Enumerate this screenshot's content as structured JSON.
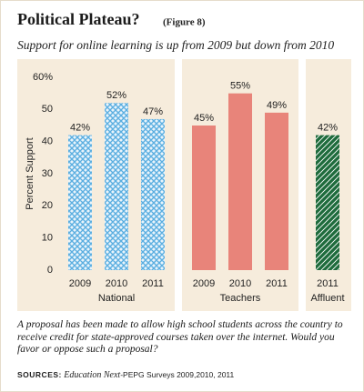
{
  "title": "Political Plateau?",
  "figure": "(Figure 8)",
  "chart_data": {
    "type": "bar",
    "subtitle": "Support for online learning is up from 2009 but down from 2010",
    "y_label": "Percent Support",
    "ylim": [
      0,
      60
    ],
    "yticks": [
      {
        "value": 60,
        "label": "60%"
      },
      50,
      40,
      30,
      20,
      10,
      0
    ],
    "background": "#f6ecdc",
    "series": [
      {
        "name": "National",
        "color": "#5aaee0",
        "pattern": "crosshatch",
        "categories": [
          "2009",
          "2010",
          "2011"
        ],
        "values": [
          42,
          52,
          47
        ],
        "value_labels": [
          "42%",
          "52%",
          "47%"
        ]
      },
      {
        "name": "Teachers",
        "color": "#e8847a",
        "pattern": "solid",
        "categories": [
          "2009",
          "2010",
          "2011"
        ],
        "values": [
          45,
          55,
          49
        ],
        "value_labels": [
          "45%",
          "55%",
          "49%"
        ]
      },
      {
        "name": "Affluent",
        "color": "#1e6b3c",
        "pattern": "diagonal",
        "categories": [
          "2011"
        ],
        "values": [
          42
        ],
        "value_labels": [
          "42%"
        ]
      }
    ]
  },
  "note": "A proposal has been made to allow high school students across the country to receive credit for state-approved courses taken over the internet. Would you favor or oppose such a proposal?",
  "sources": {
    "label": "SOURCES:",
    "publication": "Education Next",
    "text": "-PEPG Surveys 2009,2010, 2011"
  }
}
